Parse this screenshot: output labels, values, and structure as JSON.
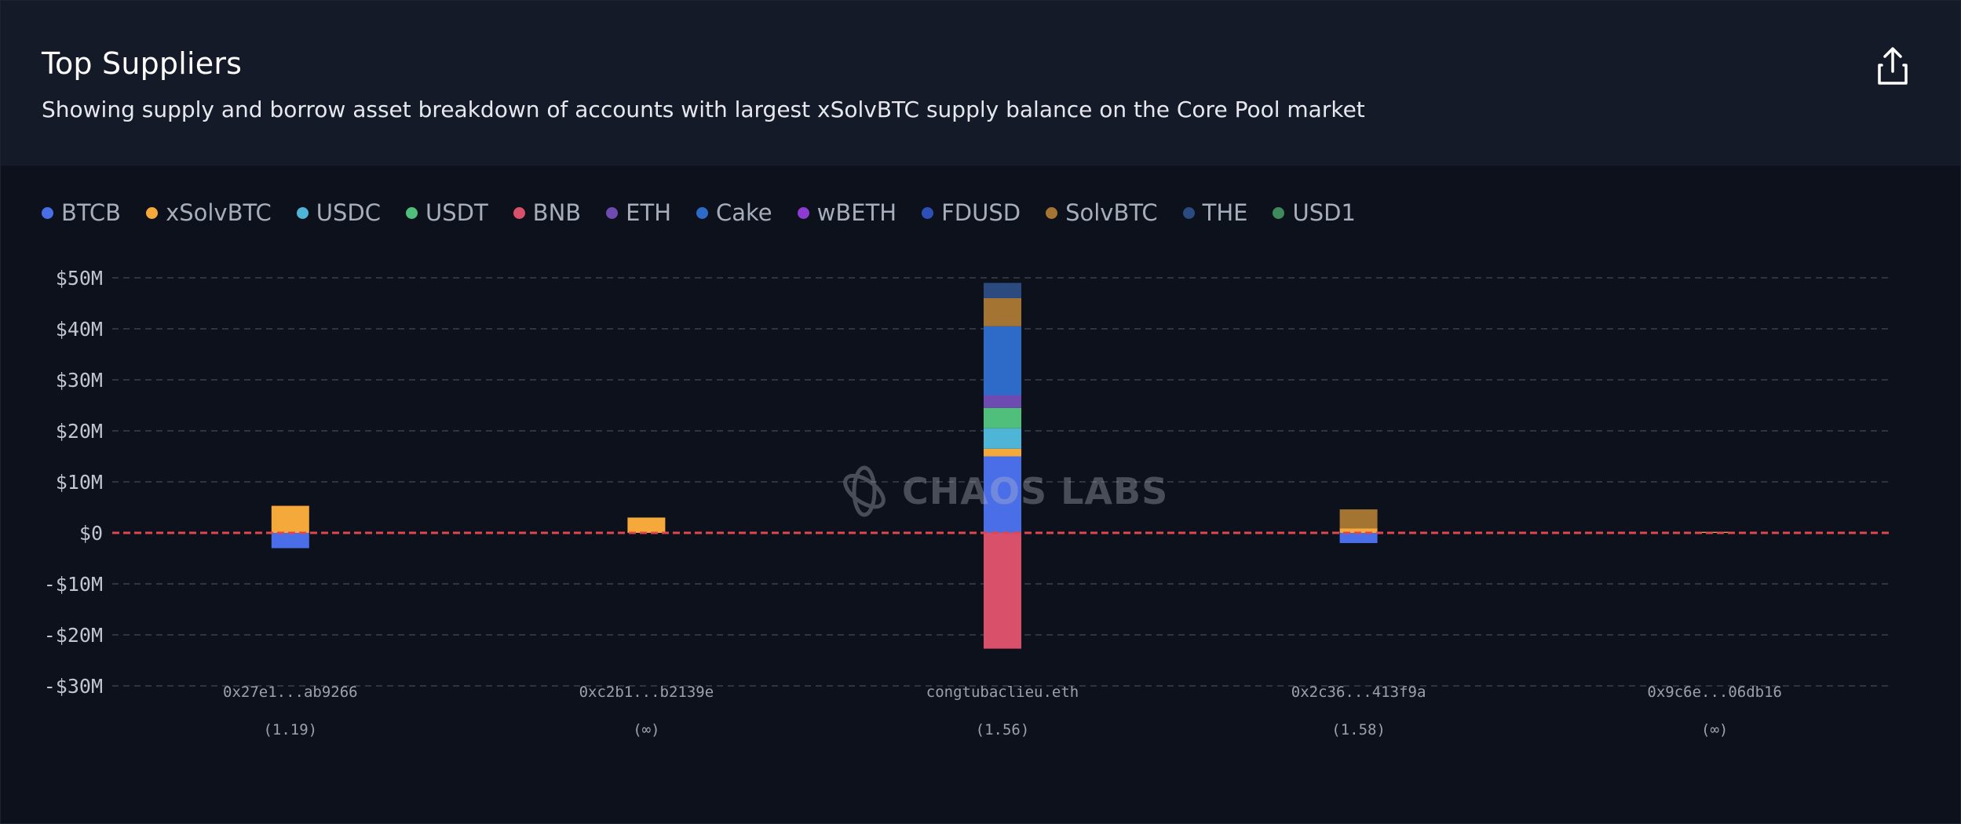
{
  "header": {
    "title": "Top Suppliers",
    "subtitle": "Showing supply and borrow asset breakdown of accounts with largest xSolvBTC supply balance on the Core Pool market"
  },
  "watermark": "CHAOS LABS",
  "legend": [
    {
      "name": "BTCB",
      "color": "#4a6ee8"
    },
    {
      "name": "xSolvBTC",
      "color": "#f6a93b"
    },
    {
      "name": "USDC",
      "color": "#4fb5d6"
    },
    {
      "name": "USDT",
      "color": "#4fbf7b"
    },
    {
      "name": "BNB",
      "color": "#d9506b"
    },
    {
      "name": "ETH",
      "color": "#6e4bb0"
    },
    {
      "name": "Cake",
      "color": "#2e6ac8"
    },
    {
      "name": "wBETH",
      "color": "#8e3bd1"
    },
    {
      "name": "FDUSD",
      "color": "#2f4fb8"
    },
    {
      "name": "SolvBTC",
      "color": "#a47432"
    },
    {
      "name": "THE",
      "color": "#2a4a80"
    },
    {
      "name": "USD1",
      "color": "#3f8a5c"
    }
  ],
  "chart_data": {
    "type": "bar",
    "stacked": true,
    "categories": [
      "0x27e1...ab9266",
      "0xc2b1...b2139e",
      "congtubaclieu.eth",
      "0x2c36...413f9a",
      "0x9c6e...06db16"
    ],
    "sublabels": [
      "(1.19)",
      "(∞)",
      "(1.56)",
      "(1.58)",
      "(∞)"
    ],
    "ylim": [
      -30000000,
      50000000
    ],
    "yticks": [
      50000000,
      40000000,
      30000000,
      20000000,
      10000000,
      0,
      -10000000,
      -20000000,
      -30000000
    ],
    "ytick_labels": [
      "$50M",
      "$40M",
      "$30M",
      "$20M",
      "$10M",
      "$0",
      "-$10M",
      "-$20M",
      "-$30M"
    ],
    "grid": true,
    "zero_line_color": "#e0474c",
    "series": [
      {
        "name": "BTCB",
        "values": [
          -3000000,
          0,
          15000000,
          -2000000,
          0
        ]
      },
      {
        "name": "xSolvBTC",
        "values": [
          5300000,
          3000000,
          1500000,
          900000,
          200000
        ]
      },
      {
        "name": "USDC",
        "values": [
          0,
          0,
          4000000,
          0,
          0
        ]
      },
      {
        "name": "USDT",
        "values": [
          0,
          0,
          4000000,
          0,
          0
        ]
      },
      {
        "name": "BNB",
        "values": [
          0,
          0,
          -22700000,
          0,
          0
        ]
      },
      {
        "name": "ETH",
        "values": [
          0,
          0,
          2500000,
          0,
          0
        ]
      },
      {
        "name": "Cake",
        "values": [
          0,
          0,
          13500000,
          0,
          0
        ]
      },
      {
        "name": "wBETH",
        "values": [
          0,
          0,
          0,
          0,
          0
        ]
      },
      {
        "name": "FDUSD",
        "values": [
          0,
          0,
          0,
          0,
          0
        ]
      },
      {
        "name": "SolvBTC",
        "values": [
          0,
          0,
          5500000,
          3700000,
          0
        ]
      },
      {
        "name": "THE",
        "values": [
          0,
          0,
          3000000,
          0,
          0
        ]
      },
      {
        "name": "USD1",
        "values": [
          0,
          0,
          0,
          0,
          0
        ]
      }
    ]
  }
}
